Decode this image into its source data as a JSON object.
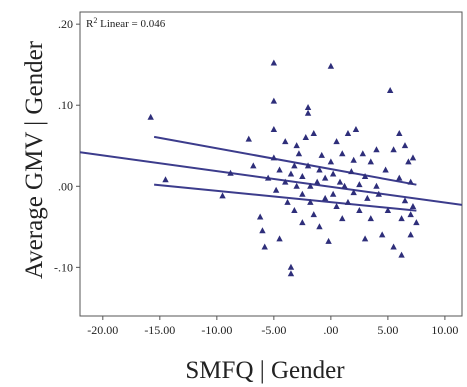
{
  "chart_data": {
    "type": "scatter",
    "xlabel": "SMFQ | Gender",
    "ylabel": "Average GMV | Gender",
    "annotation": {
      "prefix": "R",
      "sup": "2",
      "text": " Linear = 0.046"
    },
    "xlim": [
      -22,
      11.5
    ],
    "ylim": [
      -0.16,
      0.215
    ],
    "xticks": [
      -20,
      -15,
      -10,
      -5,
      0,
      5,
      10
    ],
    "xtick_labels": [
      "-20.00",
      "-15.00",
      "-10.00",
      "-5.00",
      ".00",
      "5.00",
      "10.00"
    ],
    "yticks": [
      -0.1,
      0,
      0.1,
      0.2
    ],
    "ytick_labels": [
      "-.10",
      ".00",
      ".10",
      ".20"
    ],
    "grid": false,
    "colors": {
      "points": "#2e2e7a",
      "lines": "#3c3c8c",
      "frame": "#555555"
    },
    "fit_line": {
      "x": [
        -22,
        11.5
      ],
      "y": [
        0.042,
        -0.023
      ]
    },
    "ci_lower": {
      "x": [
        -15.5,
        7.5
      ],
      "y": [
        0.002,
        -0.03
      ]
    },
    "ci_upper": {
      "x": [
        -15.5,
        7.5
      ],
      "y": [
        0.061,
        0.002
      ]
    },
    "points": [
      [
        -15.8,
        0.085
      ],
      [
        -14.5,
        0.008
      ],
      [
        -9.5,
        -0.012
      ],
      [
        -8.8,
        0.016
      ],
      [
        -7.2,
        0.058
      ],
      [
        -6.8,
        0.025
      ],
      [
        -6.2,
        -0.038
      ],
      [
        -6.0,
        -0.055
      ],
      [
        -5.5,
        0.01
      ],
      [
        -5.8,
        -0.075
      ],
      [
        -5.0,
        0.152
      ],
      [
        -5.0,
        0.105
      ],
      [
        -5.0,
        0.07
      ],
      [
        -5.0,
        0.035
      ],
      [
        -4.8,
        -0.005
      ],
      [
        -4.5,
        -0.065
      ],
      [
        -4.5,
        0.02
      ],
      [
        -4.0,
        0.055
      ],
      [
        -4.0,
        0.005
      ],
      [
        -3.8,
        -0.02
      ],
      [
        -3.5,
        -0.1
      ],
      [
        -3.5,
        -0.108
      ],
      [
        -3.5,
        0.015
      ],
      [
        -3.2,
        0.025
      ],
      [
        -3.2,
        -0.03
      ],
      [
        -3.0,
        0.05
      ],
      [
        -3.0,
        0.0
      ],
      [
        -2.8,
        0.04
      ],
      [
        -2.5,
        -0.01
      ],
      [
        -2.5,
        0.012
      ],
      [
        -2.5,
        -0.045
      ],
      [
        -2.2,
        0.06
      ],
      [
        -2.0,
        0.09
      ],
      [
        -2.0,
        0.097
      ],
      [
        -2.0,
        0.025
      ],
      [
        -1.8,
        0.0
      ],
      [
        -1.8,
        -0.02
      ],
      [
        -1.5,
        0.065
      ],
      [
        -1.5,
        -0.035
      ],
      [
        -1.2,
        0.005
      ],
      [
        -1.0,
        0.02
      ],
      [
        -1.0,
        -0.05
      ],
      [
        -0.8,
        0.038
      ],
      [
        -0.5,
        -0.015
      ],
      [
        -0.5,
        0.01
      ],
      [
        -0.2,
        -0.068
      ],
      [
        0.0,
        0.148
      ],
      [
        0.0,
        0.03
      ],
      [
        0.2,
        -0.01
      ],
      [
        0.2,
        0.015
      ],
      [
        0.5,
        0.055
      ],
      [
        0.5,
        -0.025
      ],
      [
        0.8,
        0.005
      ],
      [
        1.0,
        0.04
      ],
      [
        1.0,
        -0.04
      ],
      [
        1.2,
        0.0
      ],
      [
        1.5,
        0.065
      ],
      [
        1.5,
        -0.02
      ],
      [
        1.8,
        0.018
      ],
      [
        2.0,
        0.032
      ],
      [
        2.0,
        -0.008
      ],
      [
        2.2,
        0.07
      ],
      [
        2.5,
        0.002
      ],
      [
        2.5,
        -0.03
      ],
      [
        2.8,
        0.04
      ],
      [
        3.0,
        -0.065
      ],
      [
        3.0,
        0.012
      ],
      [
        3.2,
        -0.015
      ],
      [
        3.5,
        0.03
      ],
      [
        3.5,
        -0.04
      ],
      [
        4.0,
        0.045
      ],
      [
        4.0,
        0.0
      ],
      [
        4.2,
        -0.01
      ],
      [
        4.5,
        -0.06
      ],
      [
        4.8,
        0.02
      ],
      [
        5.0,
        -0.03
      ],
      [
        5.2,
        0.118
      ],
      [
        5.5,
        -0.075
      ],
      [
        5.5,
        0.045
      ],
      [
        6.0,
        0.065
      ],
      [
        6.0,
        0.01
      ],
      [
        6.2,
        -0.04
      ],
      [
        6.5,
        -0.018
      ],
      [
        6.5,
        0.05
      ],
      [
        6.8,
        0.03
      ],
      [
        7.0,
        -0.035
      ],
      [
        7.0,
        -0.06
      ],
      [
        7.0,
        0.005
      ],
      [
        7.2,
        -0.025
      ],
      [
        7.2,
        0.035
      ],
      [
        7.5,
        -0.045
      ],
      [
        6.2,
        -0.085
      ]
    ]
  }
}
